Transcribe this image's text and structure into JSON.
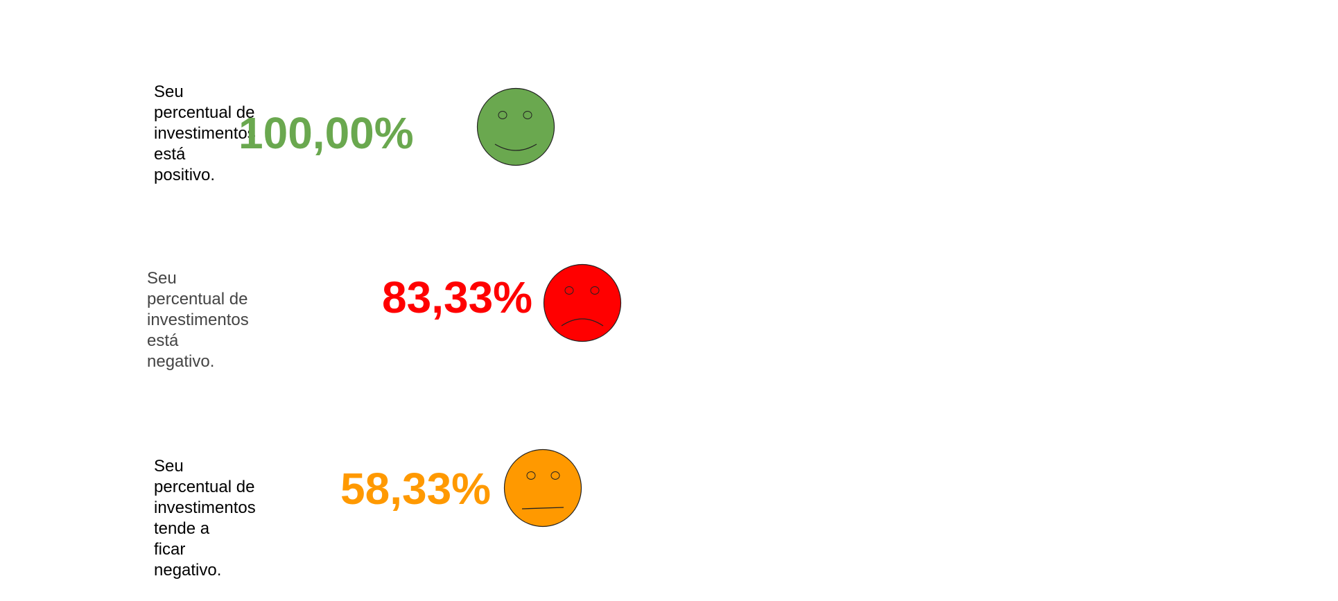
{
  "panels": [
    {
      "id": "positive",
      "message": "Seu percentual de investimentos está\npositivo.",
      "percent": "100,00%",
      "color": "#6aa84f",
      "mood": "smile"
    },
    {
      "id": "negative",
      "message": "Seu percentual de\ninvestimentos está negativo.",
      "percent": "83,33%",
      "color": "#ff0000",
      "mood": "frown"
    },
    {
      "id": "trending-negative",
      "message": "Seu percentual de\ninvestimentos tende a\nficar negativo.",
      "percent": "58,33%",
      "color": "#ff9900",
      "mood": "neutral"
    }
  ]
}
